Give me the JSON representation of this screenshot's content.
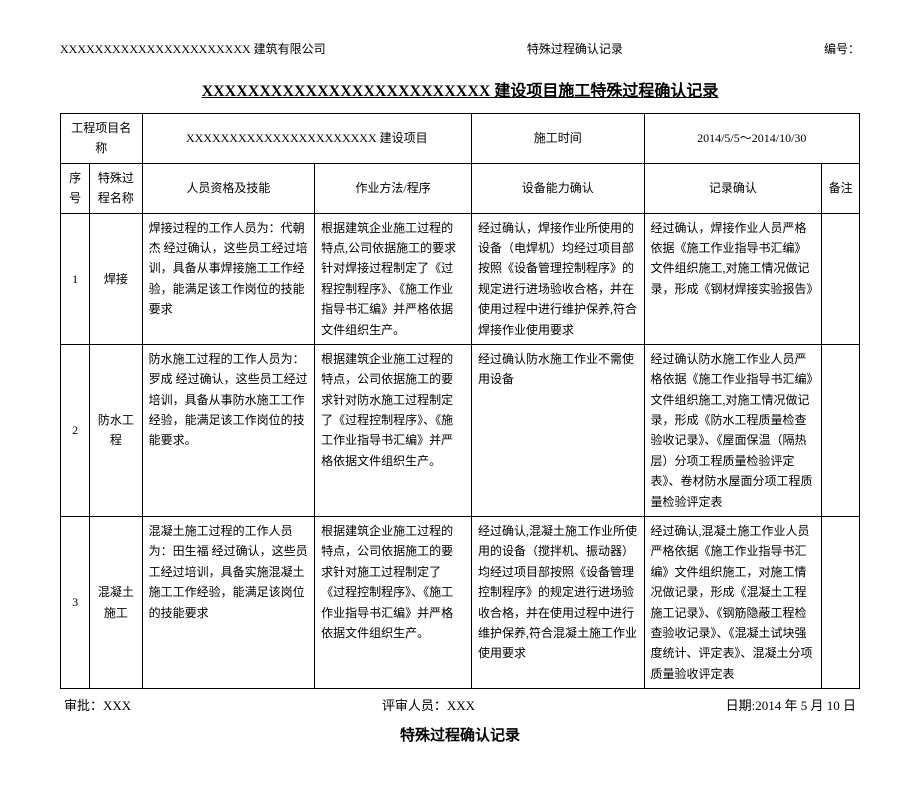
{
  "header": {
    "left": "XXXXXXXXXXXXXXXXXXXXXX 建筑有限公司",
    "center": "特殊过程确认记录",
    "right": "编号："
  },
  "title": "XXXXXXXXXXXXXXXXXXXXXXXXX 建设项目施工特殊过程确认记录",
  "meta": {
    "proj_label": "工程项目名称",
    "proj_value": "XXXXXXXXXXXXXXXXXXXXXX 建设项目",
    "time_label": "施工时间",
    "time_value": "2014/5/5～2014/10/30"
  },
  "columns": {
    "seq": "序号",
    "name": "特殊过程名称",
    "qual": "人员资格及技能",
    "method": "作业方法/程序",
    "equip": "设备能力确认",
    "record": "记录确认",
    "remark": "备注"
  },
  "rows": [
    {
      "seq": "1",
      "name": "焊接",
      "qual": "焊接过程的工作人员为：代朝杰\n经过确认，这些员工经过培训，具备从事焊接施工工作经验，能满足该工作岗位的技能要求",
      "method": "根据建筑企业施工过程的特点,公司依据施工的要求针对焊接过程制定了《过程控制程序》、《施工作业指导书汇编》并严格依据文件组织生产。",
      "equip": "经过确认，焊接作业所使用的设备（电焊机）均经过项目部按照《设备管理控制程序》的规定进行进场验收合格，并在使用过程中进行维护保养,符合焊接作业使用要求",
      "record": "经过确认，焊接作业人员严格依据《施工作业指导书汇编》文件组织施工,对施工情况做记录，形成《钢材焊接实验报告》"
    },
    {
      "seq": "2",
      "name": "防水工程",
      "qual": "防水施工过程的工作人员为：罗成\n经过确认，这些员工经过培训，具备从事防水施工工作经验，能满足该工作岗位的技能要求。",
      "method": "根据建筑企业施工过程的特点，公司依据施工的要求针对防水施工过程制定了《过程控制程序》、《施工作业指导书汇编》并严格依据文件组织生产。",
      "equip": "经过确认防水施工作业不需使用设备",
      "record": "经过确认防水施工作业人员严格依据《施工作业指导书汇编》文件组织施工,对施工情况做记录，形成《防水工程质量检查验收记录》、《屋面保温（隔热层）分项工程质量检验评定表》、卷材防水屋面分项工程质量检验评定表"
    },
    {
      "seq": "3",
      "name": "混凝土施工",
      "qual": "混凝土施工过程的工作人员为：田生福\n经过确认，这些员工经过培训，具备实施混凝土施工工作经验，能满足该岗位的技能要求",
      "method": "根据建筑企业施工过程的特点，公司依据施工的要求针对施工过程制定了《过程控制程序》、《施工作业指导书汇编》并严格依据文件组织生产。",
      "equip": "经过确认,混凝土施工作业所使用的设备（搅拌机、振动器）均经过项目部按照《设备管理控制程序》的规定进行进场验收合格，并在使用过程中进行维护保养,符合混凝土施工作业使用要求",
      "record": "经过确认,混凝土施工作业人员严格依据《施工作业指导书汇编》文件组织施工，对施工情况做记录，形成《混凝土工程施工记录》、《钢筋隐蔽工程检查验收记录》、《混凝土试块强度统计、评定表》、混凝土分项质量验收评定表"
    }
  ],
  "footer": {
    "approve": "审批：XXX",
    "reviewer": "评审人员：XXX",
    "date": "日期:2014 年 5 月 10 日"
  },
  "subtitle": "特殊过程确认记录"
}
